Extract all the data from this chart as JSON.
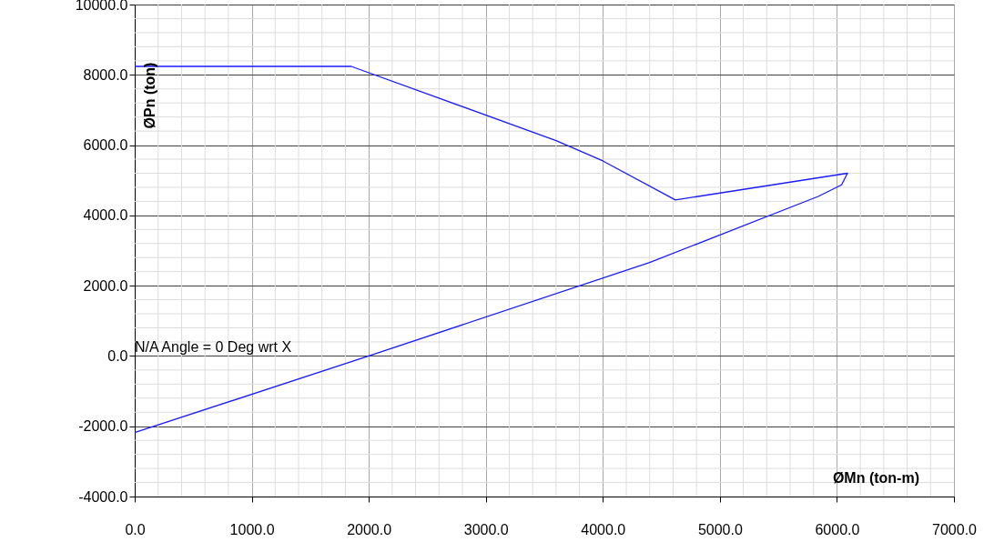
{
  "chart_data": {
    "type": "line",
    "xlabel": "ØMn (ton-m)",
    "ylabel": "ØPn (ton)",
    "annotations": [
      "N/A Angle = 0 Deg wrt X"
    ],
    "series": [
      {
        "color": "#1a1aff",
        "x": [
          0,
          1850,
          3600,
          4000,
          4620,
          6090,
          6040,
          5840,
          4400,
          2000,
          0
        ],
        "values": [
          8240,
          8240,
          6130,
          5550,
          4440,
          5200,
          4870,
          4540,
          2660,
          0,
          -2180
        ]
      }
    ],
    "xlim": [
      0,
      7000
    ],
    "xticks": [
      {
        "value": 0,
        "label": "0.0"
      },
      {
        "value": 1000,
        "label": "1000.0"
      },
      {
        "value": 2000,
        "label": "2000.0"
      },
      {
        "value": 3000,
        "label": "3000.0"
      },
      {
        "value": 4000,
        "label": "4000.0"
      },
      {
        "value": 5000,
        "label": "5000.0"
      },
      {
        "value": 6000,
        "label": "6000.0"
      },
      {
        "value": 7000,
        "label": "7000.0"
      }
    ],
    "ylim": [
      -4000,
      10000
    ],
    "yticks": [
      {
        "value": -4000,
        "label": "-4000.0"
      },
      {
        "value": -2000,
        "label": "-2000.0"
      },
      {
        "value": 0,
        "label": "0.0"
      },
      {
        "value": 2000,
        "label": "2000.0"
      },
      {
        "value": 4000,
        "label": "4000.0"
      },
      {
        "value": 6000,
        "label": "6000.0"
      },
      {
        "value": 8000,
        "label": "8000.0"
      },
      {
        "value": 10000,
        "label": "10000.0"
      }
    ],
    "grid": true,
    "marker": "none",
    "line_style": "solid"
  }
}
